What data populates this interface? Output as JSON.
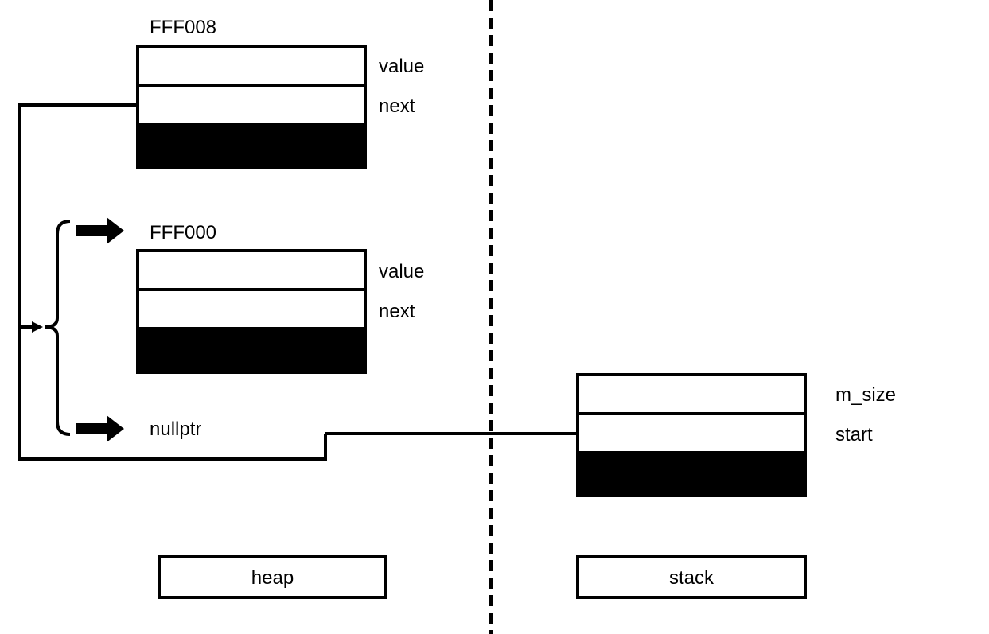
{
  "heap_nodes": [
    {
      "address": "FFF008",
      "fields": [
        "value",
        "next"
      ]
    },
    {
      "address": "FFF000",
      "fields": [
        "value",
        "next"
      ]
    }
  ],
  "null_pointer_label": "nullptr",
  "stack_struct": {
    "fields": [
      "m_size",
      "start"
    ]
  },
  "regions": {
    "heap_label": "heap",
    "stack_label": "stack"
  }
}
